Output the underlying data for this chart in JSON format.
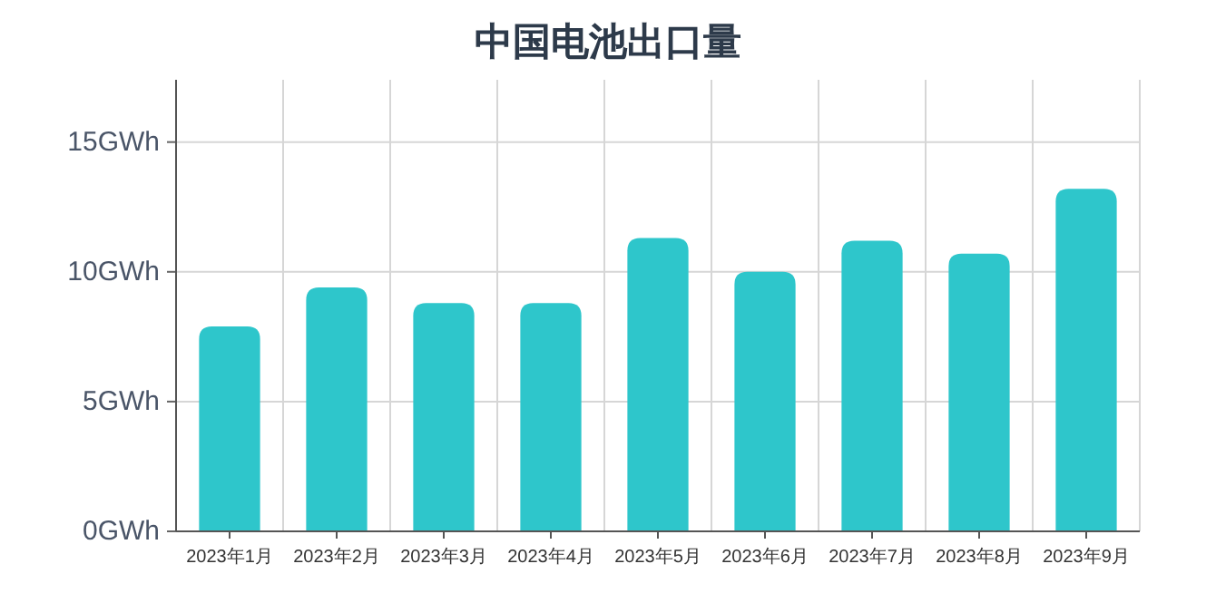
{
  "chart_data": {
    "type": "bar",
    "title": "中国电池出口量",
    "categories": [
      "2023年1月",
      "2023年2月",
      "2023年3月",
      "2023年4月",
      "2023年5月",
      "2023年6月",
      "2023年7月",
      "2023年8月",
      "2023年9月"
    ],
    "values": [
      7.9,
      9.4,
      8.8,
      8.8,
      11.3,
      10.0,
      11.2,
      10.7,
      13.2
    ],
    "color": "#2ec6cb",
    "ylim": [
      0,
      17.4
    ],
    "yticks": [
      {
        "value": 0,
        "label": "0GWh"
      },
      {
        "value": 5,
        "label": "5GWh"
      },
      {
        "value": 10,
        "label": "10GWh"
      },
      {
        "value": 15,
        "label": "15GWh"
      }
    ],
    "grid": true
  }
}
